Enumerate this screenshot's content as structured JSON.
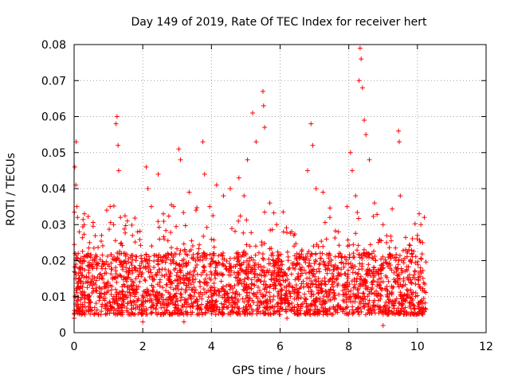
{
  "chart_data": {
    "type": "scatter",
    "title": "Day 149 of 2019, Rate Of TEC Index for receiver hert",
    "xlabel": "GPS time / hours",
    "ylabel": "ROTI / TECUs",
    "xlim": [
      0,
      12
    ],
    "ylim": [
      0,
      0.08
    ],
    "x_ticks": [
      0,
      2,
      4,
      6,
      8,
      10,
      12
    ],
    "y_ticks": [
      0,
      0.01,
      0.02,
      0.03,
      0.04,
      0.05,
      0.06,
      0.07,
      0.08
    ],
    "x_tick_labels": [
      "0",
      "2",
      "4",
      "6",
      "8",
      "10",
      "12"
    ],
    "y_tick_labels": [
      "0",
      "0.01",
      "0.02",
      "0.03",
      "0.04",
      "0.05",
      "0.06",
      "0.07",
      "0.08"
    ],
    "grid": true,
    "marker": "+",
    "color": "#ff0000",
    "series": [
      {
        "name": "ROTI",
        "x_range": [
          0.0,
          10.25
        ],
        "typical_band": [
          0.005,
          0.02
        ],
        "points": [
          [
            0.02,
            0.046
          ],
          [
            0.05,
            0.041
          ],
          [
            0.06,
            0.053
          ],
          [
            0.08,
            0.035
          ],
          [
            0.1,
            0.032
          ],
          [
            0.15,
            0.028
          ],
          [
            0.3,
            0.033
          ],
          [
            0.45,
            0.025
          ],
          [
            0.8,
            0.027
          ],
          [
            0.95,
            0.034
          ],
          [
            1.05,
            0.035
          ],
          [
            1.15,
            0.03
          ],
          [
            1.22,
            0.058
          ],
          [
            1.25,
            0.06
          ],
          [
            1.28,
            0.052
          ],
          [
            1.3,
            0.045
          ],
          [
            1.35,
            0.032
          ],
          [
            1.55,
            0.031
          ],
          [
            1.7,
            0.027
          ],
          [
            1.85,
            0.028
          ],
          [
            2.1,
            0.046
          ],
          [
            2.15,
            0.04
          ],
          [
            2.25,
            0.035
          ],
          [
            2.45,
            0.044
          ],
          [
            2.6,
            0.033
          ],
          [
            2.9,
            0.035
          ],
          [
            3.05,
            0.051
          ],
          [
            3.1,
            0.048
          ],
          [
            3.35,
            0.039
          ],
          [
            3.55,
            0.034
          ],
          [
            3.75,
            0.053
          ],
          [
            3.8,
            0.044
          ],
          [
            3.95,
            0.035
          ],
          [
            4.15,
            0.041
          ],
          [
            4.35,
            0.038
          ],
          [
            4.55,
            0.04
          ],
          [
            4.8,
            0.043
          ],
          [
            4.95,
            0.038
          ],
          [
            5.05,
            0.048
          ],
          [
            5.2,
            0.061
          ],
          [
            5.3,
            0.053
          ],
          [
            5.5,
            0.067
          ],
          [
            5.52,
            0.063
          ],
          [
            5.55,
            0.057
          ],
          [
            5.7,
            0.036
          ],
          [
            5.9,
            0.03
          ],
          [
            6.1,
            0.028
          ],
          [
            6.4,
            0.027
          ],
          [
            6.55,
            0.021
          ],
          [
            6.8,
            0.045
          ],
          [
            6.9,
            0.058
          ],
          [
            6.95,
            0.052
          ],
          [
            7.05,
            0.04
          ],
          [
            7.25,
            0.039
          ],
          [
            7.45,
            0.032
          ],
          [
            7.7,
            0.028
          ],
          [
            7.95,
            0.035
          ],
          [
            8.05,
            0.05
          ],
          [
            8.1,
            0.045
          ],
          [
            8.2,
            0.038
          ],
          [
            8.3,
            0.07
          ],
          [
            8.33,
            0.079
          ],
          [
            8.36,
            0.076
          ],
          [
            8.4,
            0.068
          ],
          [
            8.45,
            0.059
          ],
          [
            8.5,
            0.055
          ],
          [
            8.6,
            0.048
          ],
          [
            8.75,
            0.036
          ],
          [
            9.0,
            0.03
          ],
          [
            9.1,
            0.025
          ],
          [
            9.45,
            0.056
          ],
          [
            9.47,
            0.053
          ],
          [
            9.5,
            0.038
          ],
          [
            9.75,
            0.023
          ],
          [
            10.0,
            0.027
          ],
          [
            10.05,
            0.033
          ],
          [
            10.1,
            0.03
          ],
          [
            10.15,
            0.025
          ],
          [
            10.2,
            0.032
          ],
          [
            9.0,
            0.002
          ],
          [
            2.0,
            0.003
          ],
          [
            3.2,
            0.003
          ],
          [
            6.2,
            0.004
          ],
          [
            0.0,
            0.004
          ]
        ]
      }
    ]
  }
}
